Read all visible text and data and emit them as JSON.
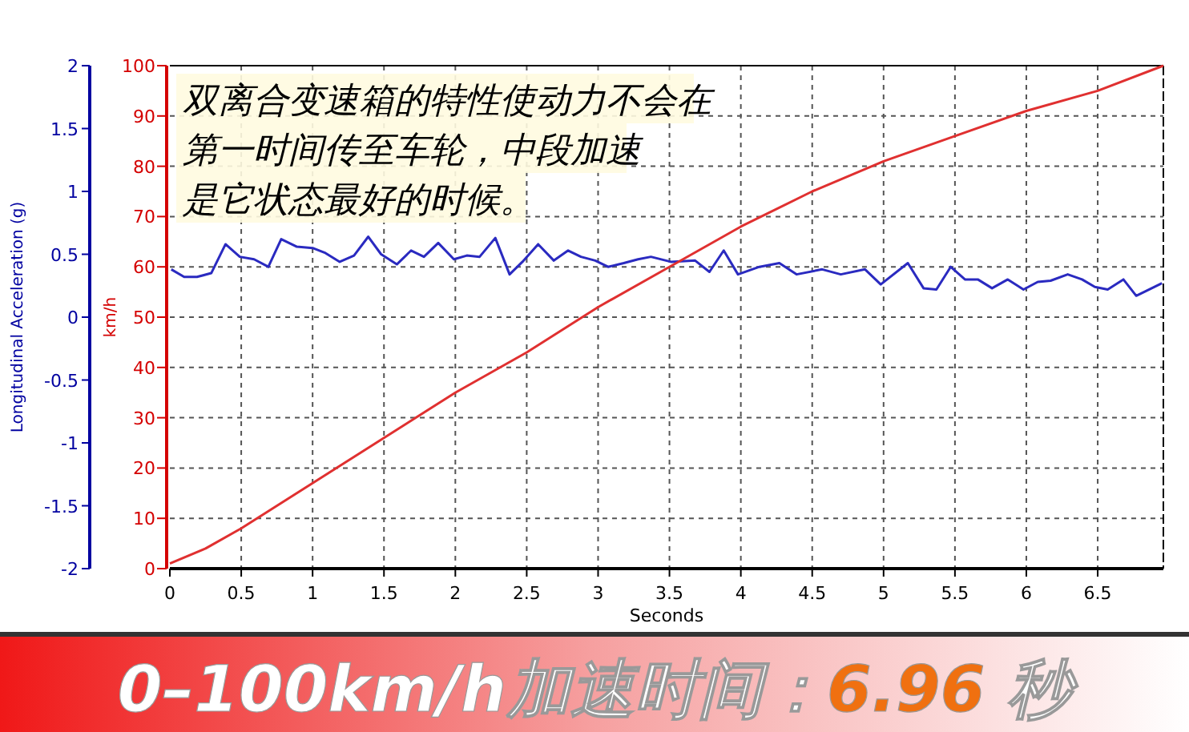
{
  "chart_data": {
    "type": "line",
    "title": "0–100km/h加速时间：6.96 秒",
    "xlabel": "Seconds",
    "ylabel": "km/h",
    "y2label": "Longitudinal Acceleration (g)",
    "annotations": [
      "双离合变速箱的特性使动力不会在",
      "第一时间传至车轮，中段加速",
      "是它状态最好的时候。"
    ],
    "xlim": [
      0,
      6.96
    ],
    "xticks": [
      0,
      0.5,
      1,
      1.5,
      2,
      2.5,
      3,
      3.5,
      4,
      4.5,
      5,
      5.5,
      6,
      6.5
    ],
    "ylim": [
      0,
      100
    ],
    "yticks": [
      0,
      10,
      20,
      30,
      40,
      50,
      60,
      70,
      80,
      90,
      100
    ],
    "y2lim": [
      -2,
      2
    ],
    "y2ticks": [
      -2,
      -1.5,
      -1,
      -0.5,
      0,
      0.5,
      1,
      1.5,
      2
    ],
    "grid": true,
    "marker": "none",
    "line_style": "solid",
    "series": [
      {
        "color": "#2a2ac0",
        "axis": "y2",
        "x": [
          0.01,
          0.1,
          0.19,
          0.29,
          0.39,
          0.49,
          0.59,
          0.69,
          0.78,
          0.89,
          1.0,
          1.09,
          1.19,
          1.29,
          1.39,
          1.48,
          1.59,
          1.69,
          1.78,
          1.88,
          1.99,
          2.08,
          2.17,
          2.28,
          2.38,
          2.47,
          2.58,
          2.69,
          2.79,
          2.88,
          2.98,
          3.07,
          3.18,
          3.28,
          3.37,
          3.51,
          3.68,
          3.78,
          3.88,
          3.98,
          4.13,
          4.27,
          4.39,
          4.57,
          4.7,
          4.87,
          4.98,
          5.17,
          5.28,
          5.37,
          5.47,
          5.57,
          5.66,
          5.76,
          5.87,
          5.98,
          6.08,
          6.17,
          6.29,
          6.39,
          6.48,
          6.57,
          6.68,
          6.77,
          6.95
        ],
        "values": [
          0.38,
          0.32,
          0.32,
          0.35,
          0.58,
          0.48,
          0.46,
          0.4,
          0.62,
          0.56,
          0.55,
          0.51,
          0.44,
          0.49,
          0.64,
          0.5,
          0.42,
          0.53,
          0.48,
          0.59,
          0.46,
          0.49,
          0.48,
          0.63,
          0.34,
          0.44,
          0.58,
          0.45,
          0.53,
          0.48,
          0.45,
          0.4,
          0.43,
          0.46,
          0.48,
          0.44,
          0.45,
          0.36,
          0.53,
          0.34,
          0.4,
          0.43,
          0.34,
          0.38,
          0.34,
          0.38,
          0.26,
          0.43,
          0.23,
          0.22,
          0.4,
          0.3,
          0.3,
          0.23,
          0.3,
          0.22,
          0.28,
          0.29,
          0.34,
          0.3,
          0.24,
          0.22,
          0.3,
          0.17,
          0.27
        ]
      },
      {
        "color": "#e03030",
        "x": [
          0,
          0.25,
          0.5,
          1,
          1.5,
          2,
          2.5,
          3,
          3.5,
          4,
          4.5,
          5,
          5.5,
          6,
          6.5,
          6.96
        ],
        "values": [
          1,
          4,
          8,
          17,
          26,
          35,
          43,
          52,
          60,
          68,
          75,
          81,
          86,
          91,
          95,
          100
        ]
      }
    ]
  }
}
